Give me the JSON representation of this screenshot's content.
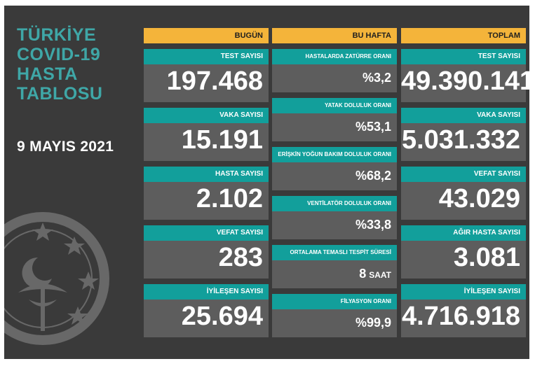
{
  "title_lines": [
    "TÜRKİYE",
    "COVID-19",
    "HASTA",
    "TABLOSU"
  ],
  "date": "9 MAYIS 2021",
  "colors": {
    "header": "#f4b43a",
    "label": "#129f9b",
    "cell": "#5d5d5d",
    "background": "#3a3a3a",
    "title": "#3fa7a7"
  },
  "today": {
    "header": "BUGÜN",
    "items": [
      {
        "label": "TEST SAYISI",
        "value": "197.468"
      },
      {
        "label": "VAKA SAYISI",
        "value": "15.191"
      },
      {
        "label": "HASTA SAYISI",
        "value": "2.102"
      },
      {
        "label": "VEFAT SAYISI",
        "value": "283"
      },
      {
        "label": "İYİLEŞEN SAYISI",
        "value": "25.694"
      }
    ]
  },
  "this_week": {
    "header": "BU HAFTA",
    "items": [
      {
        "label": "HASTALARDA ZATÜRRE ORANI",
        "value": "%3,2"
      },
      {
        "label": "YATAK DOLULUK ORANI",
        "value": "%53,1"
      },
      {
        "label": "ERİŞKİN YOĞUN BAKIM DOLULUK ORANI",
        "value": "%68,2"
      },
      {
        "label": "VENTİLATÖR DOLULUK ORANI",
        "value": "%33,8"
      },
      {
        "label": "ORTALAMA TEMASLI TESPİT SÜRESİ",
        "value": "8",
        "unit": "SAAT"
      },
      {
        "label": "FİLYASYON ORANI",
        "value": "%99,9"
      }
    ]
  },
  "total": {
    "header": "TOPLAM",
    "items": [
      {
        "label": "TEST SAYISI",
        "value": "49.390.141"
      },
      {
        "label": "VAKA SAYISI",
        "value": "5.031.332"
      },
      {
        "label": "VEFAT SAYISI",
        "value": "43.029"
      },
      {
        "label": "AĞIR HASTA SAYISI",
        "value": "3.081"
      },
      {
        "label": "İYİLEŞEN SAYISI",
        "value": "4.716.918"
      }
    ]
  }
}
